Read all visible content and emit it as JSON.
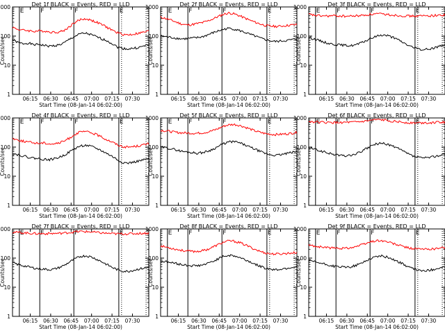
{
  "shared": {
    "ylabel": "Counts/sec",
    "xlabel": "Start Time (08-Jan-14 06:02:00)",
    "xticks": [
      "06:15",
      "06:30",
      "06:45",
      "07:00",
      "07:15",
      "07:30"
    ],
    "yticks": [
      "1",
      "10",
      "100",
      "1000"
    ],
    "markers": [
      "E",
      "F",
      "F",
      "E"
    ],
    "colors": {
      "events": "#000000",
      "lld": "#ff0000"
    }
  },
  "chart_data": [
    {
      "type": "line",
      "title": "Det 1f BLACK = Events, RED = LLD",
      "x_time_range": [
        "06:02",
        "07:42"
      ],
      "ylim": [
        1,
        1000
      ],
      "yscale": "log",
      "series": [
        {
          "name": "Events",
          "values": [
            75,
            60,
            55,
            58,
            50,
            52,
            48,
            45,
            47,
            50,
            60,
            80,
            100,
            120,
            125,
            110,
            95,
            80,
            70,
            55,
            42,
            38,
            36,
            38,
            40,
            45,
            50
          ]
        },
        {
          "name": "LLD",
          "values": [
            200,
            170,
            160,
            155,
            145,
            150,
            150,
            140,
            135,
            140,
            160,
            220,
            300,
            370,
            390,
            350,
            300,
            250,
            200,
            160,
            130,
            115,
            110,
            115,
            125,
            135,
            150
          ]
        }
      ]
    },
    {
      "type": "line",
      "title": "Det 2f BLACK = Events, RED = LLD",
      "x_time_range": [
        "06:02",
        "07:42"
      ],
      "ylim": [
        1,
        1000
      ],
      "yscale": "log",
      "series": [
        {
          "name": "Events",
          "values": [
            100,
            95,
            90,
            85,
            80,
            82,
            85,
            88,
            95,
            110,
            130,
            150,
            170,
            185,
            175,
            155,
            135,
            115,
            100,
            85,
            75,
            68,
            65,
            68,
            70,
            75,
            80
          ]
        },
        {
          "name": "LLD",
          "values": [
            450,
            400,
            350,
            300,
            260,
            240,
            250,
            270,
            290,
            330,
            390,
            470,
            560,
            620,
            580,
            500,
            420,
            350,
            300,
            260,
            230,
            220,
            215,
            220,
            230,
            240,
            250
          ]
        }
      ]
    },
    {
      "type": "line",
      "title": "Det 3f BLACK = Events, RED = LLD",
      "x_time_range": [
        "06:02",
        "07:42"
      ],
      "ylim": [
        1,
        1000
      ],
      "yscale": "log",
      "series": [
        {
          "name": "Events",
          "values": [
            90,
            80,
            70,
            62,
            55,
            52,
            50,
            48,
            47,
            50,
            58,
            70,
            85,
            100,
            110,
            105,
            90,
            75,
            60,
            48,
            40,
            36,
            34,
            36,
            40,
            45,
            52
          ]
        },
        {
          "name": "LLD",
          "values": [
            560,
            520,
            500,
            490,
            490,
            500,
            490,
            480,
            485,
            495,
            510,
            530,
            560,
            580,
            570,
            550,
            530,
            510,
            500,
            490,
            485,
            490,
            495,
            500,
            510,
            520,
            530
          ]
        }
      ]
    },
    {
      "type": "line",
      "title": "Det 4f BLACK = Events, RED = LLD",
      "x_time_range": [
        "06:02",
        "07:42"
      ],
      "ylim": [
        1,
        1000
      ],
      "yscale": "log",
      "series": [
        {
          "name": "Events",
          "values": [
            60,
            55,
            50,
            45,
            42,
            40,
            38,
            37,
            40,
            45,
            55,
            70,
            90,
            110,
            115,
            105,
            90,
            75,
            60,
            48,
            36,
            30,
            28,
            30,
            33,
            36,
            40
          ]
        },
        {
          "name": "LLD",
          "values": [
            200,
            175,
            160,
            150,
            140,
            135,
            140,
            130,
            130,
            140,
            165,
            210,
            280,
            330,
            340,
            310,
            270,
            220,
            180,
            150,
            120,
            105,
            100,
            105,
            110,
            120,
            130
          ]
        }
      ]
    },
    {
      "type": "line",
      "title": "Det 5f BLACK = Events, RED = LLD",
      "x_time_range": [
        "06:02",
        "07:42"
      ],
      "ylim": [
        1,
        1000
      ],
      "yscale": "log",
      "series": [
        {
          "name": "Events",
          "values": [
            100,
            95,
            88,
            80,
            72,
            68,
            65,
            62,
            65,
            72,
            85,
            105,
            130,
            150,
            155,
            140,
            120,
            100,
            85,
            70,
            60,
            55,
            52,
            55,
            60,
            65,
            70
          ]
        },
        {
          "name": "LLD",
          "values": [
            380,
            360,
            340,
            320,
            310,
            305,
            300,
            300,
            310,
            330,
            370,
            430,
            520,
            580,
            600,
            560,
            490,
            420,
            360,
            320,
            290,
            275,
            270,
            275,
            285,
            300,
            320
          ]
        }
      ]
    },
    {
      "type": "line",
      "title": "Det 6f BLACK = Events, RED = LLD",
      "x_time_range": [
        "06:02",
        "07:42"
      ],
      "ylim": [
        1,
        1000
      ],
      "yscale": "log",
      "series": [
        {
          "name": "Events",
          "values": [
            95,
            85,
            75,
            68,
            60,
            55,
            52,
            50,
            52,
            58,
            70,
            88,
            110,
            130,
            135,
            125,
            108,
            90,
            72,
            58,
            48,
            44,
            42,
            44,
            48,
            52,
            58
          ]
        },
        {
          "name": "LLD",
          "values": [
            760,
            740,
            720,
            700,
            690,
            690,
            700,
            700,
            705,
            715,
            740,
            780,
            830,
            860,
            850,
            820,
            780,
            740,
            710,
            690,
            680,
            680,
            685,
            690,
            700,
            710,
            720
          ]
        }
      ]
    },
    {
      "type": "line",
      "title": "Det 7f BLACK = Events, RED = LLD",
      "x_time_range": [
        "06:02",
        "07:42"
      ],
      "ylim": [
        1,
        1000
      ],
      "yscale": "log",
      "series": [
        {
          "name": "Events",
          "values": [
            70,
            60,
            55,
            50,
            46,
            43,
            42,
            40,
            42,
            48,
            58,
            75,
            95,
            115,
            120,
            110,
            92,
            75,
            60,
            48,
            40,
            36,
            35,
            38,
            42,
            45,
            48
          ]
        },
        {
          "name": "LLD",
          "values": [
            780,
            760,
            740,
            720,
            700,
            690,
            690,
            700,
            700,
            710,
            730,
            760,
            800,
            820,
            810,
            790,
            760,
            730,
            710,
            690,
            680,
            680,
            685,
            690,
            700,
            710,
            720
          ]
        }
      ]
    },
    {
      "type": "line",
      "title": "Det 8f BLACK = Events, RED = LLD",
      "x_time_range": [
        "06:02",
        "07:42"
      ],
      "ylim": [
        1,
        1000
      ],
      "yscale": "log",
      "series": [
        {
          "name": "Events",
          "values": [
            80,
            75,
            70,
            65,
            60,
            57,
            55,
            55,
            58,
            65,
            78,
            95,
            115,
            125,
            120,
            105,
            90,
            75,
            62,
            52,
            45,
            42,
            40,
            42,
            45,
            48,
            52
          ]
        },
        {
          "name": "LLD",
          "values": [
            260,
            240,
            220,
            200,
            185,
            175,
            170,
            170,
            180,
            200,
            240,
            290,
            350,
            390,
            380,
            340,
            290,
            240,
            200,
            170,
            150,
            140,
            138,
            140,
            145,
            150,
            155
          ]
        }
      ]
    },
    {
      "type": "line",
      "title": "Det 9f BLACK = Events, RED = LLD",
      "x_time_range": [
        "06:02",
        "07:42"
      ],
      "ylim": [
        1,
        1000
      ],
      "yscale": "log",
      "series": [
        {
          "name": "Events",
          "values": [
            80,
            75,
            68,
            62,
            56,
            52,
            50,
            48,
            50,
            56,
            66,
            82,
            100,
            115,
            118,
            108,
            92,
            76,
            62,
            50,
            42,
            38,
            36,
            38,
            42,
            46,
            50
          ]
        },
        {
          "name": "LLD",
          "values": [
            280,
            260,
            245,
            235,
            225,
            220,
            218,
            220,
            230,
            250,
            280,
            320,
            370,
            400,
            390,
            360,
            320,
            280,
            250,
            225,
            210,
            205,
            200,
            205,
            210,
            220,
            230
          ]
        }
      ]
    }
  ]
}
